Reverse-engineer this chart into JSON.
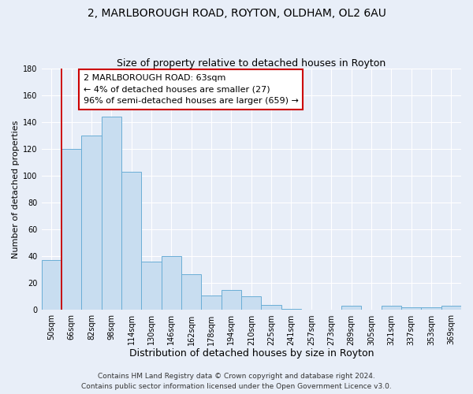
{
  "title": "2, MARLBOROUGH ROAD, ROYTON, OLDHAM, OL2 6AU",
  "subtitle": "Size of property relative to detached houses in Royton",
  "xlabel": "Distribution of detached houses by size in Royton",
  "ylabel": "Number of detached properties",
  "bar_color": "#c8ddf0",
  "bar_edge_color": "#6aaed6",
  "categories": [
    "50sqm",
    "66sqm",
    "82sqm",
    "98sqm",
    "114sqm",
    "130sqm",
    "146sqm",
    "162sqm",
    "178sqm",
    "194sqm",
    "210sqm",
    "225sqm",
    "241sqm",
    "257sqm",
    "273sqm",
    "289sqm",
    "305sqm",
    "321sqm",
    "337sqm",
    "353sqm",
    "369sqm"
  ],
  "values": [
    37,
    120,
    130,
    144,
    103,
    36,
    40,
    27,
    11,
    15,
    10,
    4,
    1,
    0,
    0,
    3,
    0,
    3,
    2,
    2,
    3
  ],
  "ylim": [
    0,
    180
  ],
  "yticks": [
    0,
    20,
    40,
    60,
    80,
    100,
    120,
    140,
    160,
    180
  ],
  "annotation_line1": "2 MARLBOROUGH ROAD: 63sqm",
  "annotation_line2": "← 4% of detached houses are smaller (27)",
  "annotation_line3": "96% of semi-detached houses are larger (659) →",
  "vline_x_idx": 1,
  "box_color": "#ffffff",
  "box_edge_color": "#cc0000",
  "footer_line1": "Contains HM Land Registry data © Crown copyright and database right 2024.",
  "footer_line2": "Contains public sector information licensed under the Open Government Licence v3.0.",
  "bg_color": "#e8eef8",
  "grid_color": "#ffffff",
  "title_fontsize": 10,
  "subtitle_fontsize": 9,
  "xlabel_fontsize": 9,
  "ylabel_fontsize": 8,
  "tick_fontsize": 7,
  "annotation_fontsize": 8,
  "footer_fontsize": 6.5
}
